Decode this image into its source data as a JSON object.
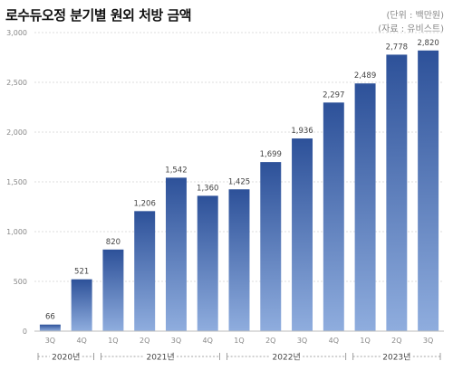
{
  "title": "로수듀오정 분기별 원외 처방 금액",
  "unit_note": "(단위 : 백만원)",
  "source_note": "(자료 : 유비스트)",
  "chart_data": {
    "type": "bar",
    "categories": [
      "3Q",
      "4Q",
      "1Q",
      "2Q",
      "3Q",
      "4Q",
      "1Q",
      "2Q",
      "3Q",
      "4Q",
      "1Q",
      "2Q",
      "3Q"
    ],
    "values": [
      66,
      521,
      820,
      1206,
      1542,
      1360,
      1425,
      1699,
      1936,
      2297,
      2489,
      2778,
      2820
    ],
    "value_labels": [
      "66",
      "521",
      "820",
      "1,206",
      "1,542",
      "1,360",
      "1,425",
      "1,699",
      "1,936",
      "2,297",
      "2,489",
      "2,778",
      "2,820"
    ],
    "yticks": [
      0,
      500,
      1000,
      1500,
      2000,
      2500,
      3000
    ],
    "ytick_labels": [
      "0",
      "500",
      "1,000",
      "1,500",
      "2,000",
      "2,500",
      "3,000"
    ],
    "ylim": [
      0,
      3000
    ],
    "grid": true,
    "year_groups": [
      {
        "label": "2020년",
        "start": 0,
        "end": 1
      },
      {
        "label": "2021년",
        "start": 2,
        "end": 5
      },
      {
        "label": "2022년",
        "start": 6,
        "end": 9
      },
      {
        "label": "2023년",
        "start": 10,
        "end": 12
      }
    ],
    "colors": {
      "bar_top": "#2d5199",
      "bar_bottom": "#8fadde",
      "grid": "#dcdcdc",
      "axis": "#bbbbbb",
      "text": "#444444",
      "muted": "#888888"
    }
  }
}
